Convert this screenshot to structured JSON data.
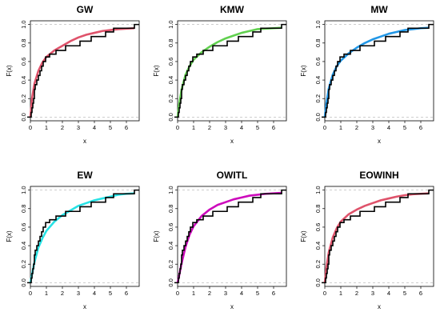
{
  "chart_data": {
    "type": "line",
    "xlabel": "x",
    "ylabel": "F(x)",
    "xlim": [
      0,
      6.8
    ],
    "ylim": [
      0,
      1
    ],
    "x_ticks": [
      "0",
      "1",
      "2",
      "3",
      "4",
      "5",
      "6"
    ],
    "y_ticks": [
      "0.0",
      "0.2",
      "0.4",
      "0.6",
      "0.8",
      "1.0"
    ],
    "reference_lines": [
      0,
      1
    ],
    "empirical_cdf": {
      "x": [
        0.05,
        0.1,
        0.15,
        0.2,
        0.25,
        0.3,
        0.4,
        0.5,
        0.6,
        0.7,
        0.8,
        0.95,
        1.2,
        1.6,
        2.2,
        3.1,
        3.8,
        4.7,
        5.2,
        6.5
      ],
      "y": [
        0.05,
        0.1,
        0.15,
        0.2,
        0.3,
        0.35,
        0.4,
        0.45,
        0.5,
        0.55,
        0.6,
        0.65,
        0.68,
        0.72,
        0.77,
        0.82,
        0.87,
        0.92,
        0.96,
        1.0
      ]
    },
    "panels": [
      {
        "title": "GW",
        "color": "#df536b",
        "fitted": {
          "x": [
            0,
            0.1,
            0.25,
            0.5,
            0.75,
            1,
            1.5,
            2,
            2.5,
            3,
            3.5,
            4,
            4.5,
            5,
            5.5,
            6,
            6.5
          ],
          "y": [
            0,
            0.2,
            0.36,
            0.5,
            0.59,
            0.65,
            0.72,
            0.77,
            0.82,
            0.86,
            0.89,
            0.91,
            0.93,
            0.94,
            0.95,
            0.955,
            0.96
          ]
        }
      },
      {
        "title": "KMW",
        "color": "#61d04f",
        "fitted": {
          "x": [
            0,
            0.1,
            0.25,
            0.5,
            0.75,
            1,
            1.5,
            2,
            2.5,
            3,
            3.5,
            4,
            4.5,
            5,
            5.5,
            6,
            6.5
          ],
          "y": [
            0,
            0.14,
            0.3,
            0.46,
            0.55,
            0.62,
            0.7,
            0.76,
            0.81,
            0.85,
            0.88,
            0.91,
            0.93,
            0.95,
            0.955,
            0.96,
            0.965
          ]
        }
      },
      {
        "title": "MW",
        "color": "#2297e6",
        "fitted": {
          "x": [
            0,
            0.1,
            0.25,
            0.5,
            0.75,
            1,
            1.5,
            2,
            2.5,
            3,
            3.5,
            4,
            4.5,
            5,
            5.5,
            6,
            6.5
          ],
          "y": [
            0,
            0.15,
            0.31,
            0.46,
            0.55,
            0.61,
            0.69,
            0.75,
            0.8,
            0.84,
            0.87,
            0.9,
            0.92,
            0.94,
            0.95,
            0.96,
            0.965
          ]
        }
      },
      {
        "title": "EW",
        "color": "#28e2e5",
        "fitted": {
          "x": [
            0,
            0.1,
            0.25,
            0.5,
            0.75,
            1,
            1.5,
            2,
            2.5,
            3,
            3.5,
            4,
            4.5,
            5,
            5.5,
            6,
            6.5
          ],
          "y": [
            0,
            0.09,
            0.22,
            0.38,
            0.48,
            0.56,
            0.66,
            0.73,
            0.78,
            0.83,
            0.86,
            0.89,
            0.91,
            0.93,
            0.95,
            0.96,
            0.965
          ]
        }
      },
      {
        "title": "OWITL",
        "color": "#cd0bbc",
        "fitted": {
          "x": [
            0,
            0.1,
            0.25,
            0.5,
            0.75,
            1,
            1.5,
            2,
            2.5,
            3,
            3.5,
            4,
            4.5,
            5,
            5.5,
            6,
            6.5
          ],
          "y": [
            0,
            0.08,
            0.21,
            0.39,
            0.52,
            0.61,
            0.72,
            0.79,
            0.84,
            0.87,
            0.9,
            0.92,
            0.94,
            0.95,
            0.96,
            0.965,
            0.97
          ]
        }
      },
      {
        "title": "EOWINH",
        "color": "#df536b",
        "fitted": {
          "x": [
            0,
            0.1,
            0.25,
            0.5,
            0.75,
            1,
            1.5,
            2,
            2.5,
            3,
            3.5,
            4,
            4.5,
            5,
            5.5,
            6,
            6.5
          ],
          "y": [
            0,
            0.16,
            0.33,
            0.49,
            0.59,
            0.66,
            0.74,
            0.79,
            0.83,
            0.86,
            0.89,
            0.91,
            0.93,
            0.945,
            0.955,
            0.96,
            0.965
          ]
        }
      }
    ]
  }
}
